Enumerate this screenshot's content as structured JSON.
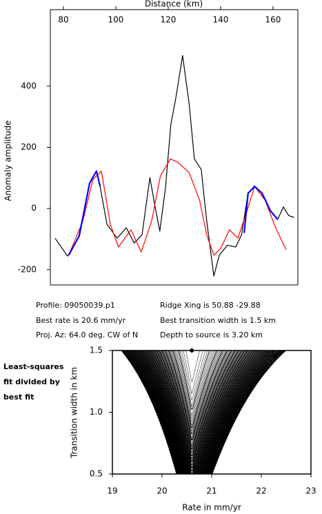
{
  "chart_data": [
    {
      "type": "line",
      "x_label": "Distance (km)",
      "y_label": "Anomaly amplitude",
      "xlim": [
        75,
        169.5
      ],
      "ylim": [
        -250,
        650
      ],
      "xticks": [
        80,
        100,
        120,
        140,
        160
      ],
      "yticks": [
        -200,
        0,
        200,
        400
      ],
      "grid": false,
      "series": [
        {
          "color": "#000000",
          "x": [
            76.8,
            81.6,
            86,
            90,
            92.6,
            94,
            96.6,
            100.5,
            104,
            107,
            110,
            113,
            115,
            116.8,
            119,
            121,
            123,
            125.5,
            128,
            130,
            132.6,
            134.7,
            137.4,
            139.5,
            142.6,
            145.8,
            148,
            150.5,
            153,
            155.8,
            159,
            161.8,
            164,
            166,
            168
          ],
          "values": [
            -97,
            -156,
            -90,
            83,
            122,
            72,
            -52,
            -97,
            -63,
            -113,
            -86,
            101,
            5,
            -74,
            72,
            275,
            365,
            500,
            343,
            162,
            128,
            -41,
            -221,
            -153,
            -120,
            -126,
            -86,
            50,
            72,
            50,
            -7,
            -36,
            5,
            -23,
            -29
          ]
        },
        {
          "color": "#ff0000",
          "x": [
            82,
            87.4,
            91.3,
            94.5,
            97.9,
            101,
            105.8,
            109.7,
            113.7,
            117,
            120.8,
            123.7,
            128,
            132,
            134.7,
            137.4,
            140,
            143.4,
            146.6,
            149.7,
            153,
            157,
            161,
            165
          ],
          "values": [
            -153,
            -41,
            95,
            122,
            -52,
            -126,
            -70,
            -142,
            -41,
            106,
            162,
            151,
            117,
            27,
            -86,
            -153,
            -131,
            -70,
            -97,
            -18,
            72,
            27,
            -63,
            -135
          ]
        },
        {
          "color": "#0000ff",
          "x": [
            82,
            86,
            90,
            92.6,
            94,
            null,
            149,
            150.5,
            153,
            155.8,
            159,
            161.8
          ],
          "values": [
            -153,
            -90,
            83,
            122,
            72,
            null,
            -80,
            50,
            72,
            50,
            -7,
            -36
          ]
        }
      ]
    },
    {
      "type": "contour",
      "x_label": "Rate in mm/yr",
      "y_label": "Transition width in km",
      "side_label": [
        "Least-squares",
        "fit divided by",
        "best fit"
      ],
      "xlim": [
        19,
        23
      ],
      "ylim": [
        0.5,
        1.5
      ],
      "xticks": [
        19,
        20,
        21,
        22,
        23
      ],
      "yticks": [
        0.5,
        {
          "value": 1,
          "label": "1.0"
        },
        1.5
      ],
      "best_fit": {
        "x": 20.6,
        "y": 1.5
      }
    }
  ],
  "notes": {
    "left": [
      "Profile: 09050039.p1",
      "Best rate is 20.6 mm/yr",
      "Proj. Az: 64.0 deg. CW of N"
    ],
    "right": [
      "Ridge Xing is 50.88 -29.88",
      "Best transition width is 1.5 km",
      "Depth to source is   3.20 km"
    ]
  }
}
